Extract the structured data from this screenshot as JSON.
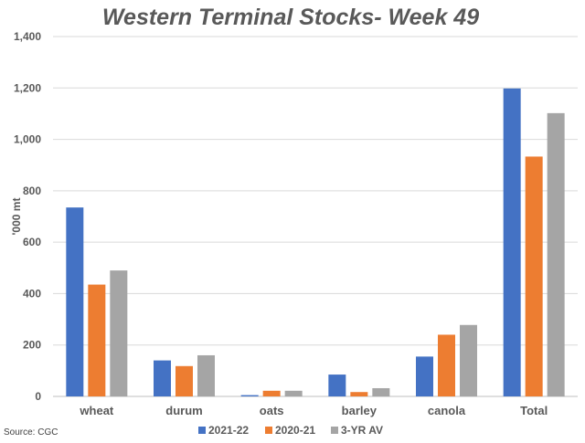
{
  "chart_data": {
    "type": "bar",
    "title": "Western Terminal Stocks- Week 49",
    "ylabel": "'000 mt",
    "xlabel": "",
    "ylim": [
      0,
      1400
    ],
    "yticks": [
      0,
      200,
      400,
      600,
      800,
      1000,
      1200,
      1400
    ],
    "ytick_labels": [
      "0",
      "200",
      "400",
      "600",
      "800",
      "1,000",
      "1,200",
      "1,400"
    ],
    "categories": [
      "wheat",
      "durum",
      "oats",
      "barley",
      "canola",
      "Total"
    ],
    "series": [
      {
        "name": "2021-22",
        "color": "#4472C4",
        "values": [
          735,
          140,
          5,
          85,
          155,
          1198
        ]
      },
      {
        "name": "2020-21",
        "color": "#ED7D31",
        "values": [
          435,
          118,
          22,
          17,
          240,
          933
        ]
      },
      {
        "name": "3-YR AV",
        "color": "#A5A5A5",
        "values": [
          490,
          160,
          22,
          32,
          278,
          1102
        ]
      }
    ],
    "grid": true,
    "legend_position": "bottom",
    "source": "Source: CGC"
  }
}
